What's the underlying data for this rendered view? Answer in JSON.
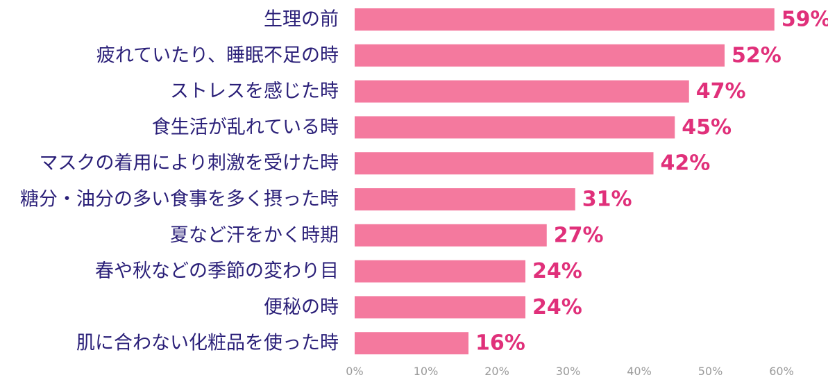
{
  "chart_data": {
    "type": "bar",
    "orientation": "horizontal",
    "categories": [
      "生理の前",
      "疲れていたり、睡眠不足の時",
      "ストレスを感じた時",
      "食生活が乱れている時",
      "マスクの着用により刺激を受けた時",
      "糖分・油分の多い食事を多く摂った時",
      "夏など汗をかく時期",
      "春や秋などの季節の変わり目",
      "便秘の時",
      "肌に合わない化粧品を使った時"
    ],
    "values": [
      59,
      52,
      47,
      45,
      42,
      31,
      27,
      24,
      24,
      16
    ],
    "value_labels": [
      "59%",
      "52%",
      "47%",
      "45%",
      "42%",
      "31%",
      "27%",
      "24%",
      "24%",
      "16%"
    ],
    "x_ticks": [
      "0%",
      "10%",
      "20%",
      "30%",
      "40%",
      "50%",
      "60%"
    ],
    "xlim": [
      0,
      60
    ],
    "grid": false,
    "colors": {
      "bar": "#f4799e",
      "value_label": "#e0307a",
      "category_label": "#2a1f78",
      "tick_label": "#9a9a9a"
    }
  }
}
